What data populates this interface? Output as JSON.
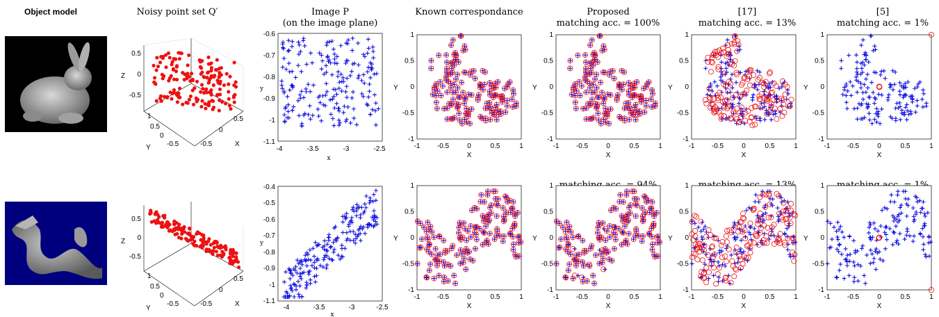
{
  "header": {
    "object_model": "Object model",
    "noisy_point_set": "Noisy point set Q′",
    "image_title_line1": "Image P",
    "image_title_line2": "(on the image plane)",
    "known_corr": "Known correspondance",
    "proposed": "Proposed",
    "ref17": "[17]",
    "ref5": "[5]"
  },
  "rows": [
    {
      "object": "bunny",
      "proposed_acc": "matching acc. = 100%",
      "ref17_acc": "matching acc. = 13%",
      "ref5_acc": "matching acc. = 1%",
      "image_yticks": [
        "-0.6",
        "-0.7",
        "-0.8",
        "-0.9",
        "-1",
        "-1.1"
      ],
      "image_xticks": [
        "-4",
        "-3.5",
        "-3",
        "-2.5"
      ]
    },
    {
      "object": "dragon",
      "proposed_acc": "matching acc. = 94%",
      "ref17_acc": "matching acc. = 13%",
      "ref5_acc": "matching acc. = 1%",
      "image_yticks": [
        "-0.4",
        "-0.5",
        "-0.6",
        "-0.7",
        "-0.8",
        "-0.9",
        "-1",
        "-1.1"
      ],
      "image_xticks": [
        "-4",
        "-3.5",
        "-3",
        "-2.5"
      ]
    }
  ],
  "axes": {
    "xlabel_2d": "X",
    "ylabel_2d": "Y",
    "xlabel_img": "x",
    "ylabel_img": "y",
    "xlabel_3d": "X",
    "ylabel_3d": "Y",
    "zlabel_3d": "Z",
    "ticks_2d": [
      "-1",
      "-0.5",
      "0",
      "0.5",
      "1"
    ],
    "ticks_3d_z": [
      "0.5",
      "0",
      "-0.5"
    ],
    "ticks_3d_y": [
      "1",
      "0.5",
      "0",
      "-0.5"
    ],
    "ticks_3d_x": [
      "-0.5",
      "0",
      "0.5"
    ]
  },
  "colors": {
    "blue_marker": "#1010e0",
    "red_marker": "#ee1111",
    "bunny_bg": "#000000",
    "dragon_bg": "#00007f"
  }
}
